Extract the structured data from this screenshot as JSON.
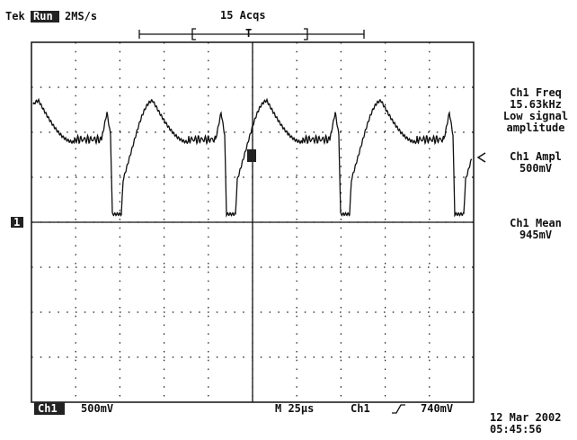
{
  "header": {
    "brand": "Tek",
    "status": "Run",
    "sample_rate": "2MS/s",
    "acquisitions": "15 Acqs"
  },
  "markers": {
    "trigger": "T",
    "channel": "1"
  },
  "measurements": [
    {
      "label": "Ch1 Freq",
      "value": "15.63kHz",
      "notes": [
        "Low signal",
        "amplitude"
      ]
    },
    {
      "label": "Ch1 Ampl",
      "value": "500mV"
    },
    {
      "label": "Ch1 Mean",
      "value": "945mV"
    }
  ],
  "footer": {
    "channel": "Ch1",
    "scale": "500mV",
    "timebase": "M 25µs",
    "trigger_source": "Ch1",
    "trigger_level": "740mV",
    "date": "12 Mar 2002",
    "time": "05:45:56"
  }
}
